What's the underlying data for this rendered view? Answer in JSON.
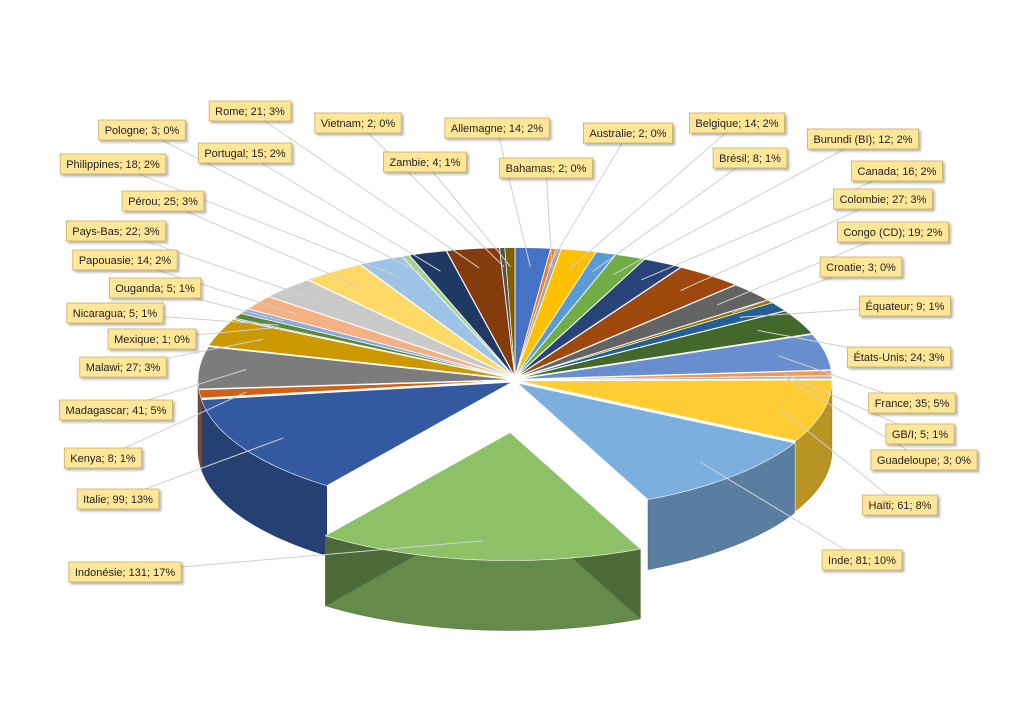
{
  "chart_data": {
    "type": "pie3d",
    "values": [
      14,
      2,
      2,
      14,
      8,
      12,
      16,
      27,
      19,
      3,
      9,
      24,
      35,
      5,
      3,
      61,
      81,
      131,
      99,
      8,
      41,
      27,
      1,
      5,
      5,
      14,
      22,
      25,
      18,
      3,
      15,
      21,
      2,
      4
    ],
    "value_labels": [
      "Allemagne; 14; 2%",
      "Australie; 2; 0%",
      "Bahamas; 2; 0%",
      "Belgique; 14; 2%",
      "Brésil; 8; 1%",
      "Burundi (BI); 12; 2%",
      "Canada; 16; 2%",
      "Colombie; 27; 3%",
      "Congo (CD); 19; 2%",
      "Croatie; 3; 0%",
      "Équateur; 9; 1%",
      "États-Unis; 24; 3%",
      "France; 35; 5%",
      "GB/I; 5; 1%",
      "Guadeloupe; 3; 0%",
      "Haïti; 61; 8%",
      "Inde; 81; 10%",
      "Indonésie; 131; 17%",
      "Italie; 99; 13%",
      "Kenya; 8; 1%",
      "Madagascar; 41; 5%",
      "Malawi; 27; 3%",
      "Mexique; 1; 0%",
      "Nicaragua; 5; 1%",
      "Ouganda; 5; 1%",
      "Papouasie; 14; 2%",
      "Pays-Bas; 22; 3%",
      "Pérou; 25; 3%",
      "Philippines; 18; 2%",
      "Pologne; 3; 0%",
      "Portugal; 15; 2%",
      "Rome; 21; 3%",
      "Vietnam; 2; 0%",
      "Zambie; 4; 1%"
    ],
    "colors": [
      "#4472C4",
      "#ED7D31",
      "#A5A5A5",
      "#FFC000",
      "#5B9BD5",
      "#70AD47",
      "#264478",
      "#9E480E",
      "#636363",
      "#997300",
      "#255E91",
      "#43682B",
      "#698ED0",
      "#F1975A",
      "#B7B7B7",
      "#FFCD33",
      "#7CAFDD",
      "#8CC168",
      "#335AA1",
      "#D26012",
      "#7C7C7C",
      "#CC9A00",
      "#3276B5",
      "#5A8A39",
      "#8FAADC",
      "#F4B183",
      "#C9C9C9",
      "#FFD966",
      "#9DC3E6",
      "#A9D18E",
      "#203864",
      "#843C0C",
      "#525252",
      "#7F6000"
    ],
    "exploded": 17
  }
}
